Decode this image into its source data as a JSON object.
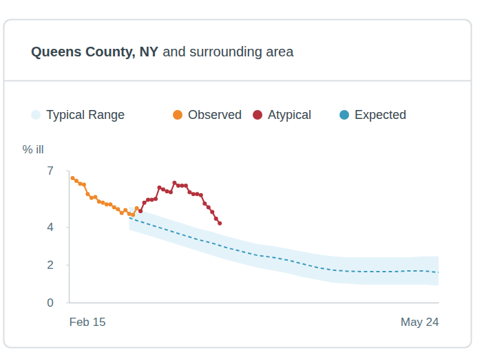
{
  "chart_data": {
    "type": "line",
    "title": "Queens County, NY",
    "subtitle": "and surrounding area",
    "ylabel": "% ill",
    "xlim": [
      0,
      98
    ],
    "xticks": [
      {
        "value": 0,
        "label": "Feb 15"
      },
      {
        "value": 98,
        "label": "May 24"
      }
    ],
    "ylim": [
      0,
      7
    ],
    "yticks": [
      0,
      2,
      4,
      7
    ],
    "series": [
      {
        "name": "Typical Range",
        "type": "area",
        "color": "#e4f3fa",
        "x": [
          16,
          18,
          22,
          26,
          30,
          34,
          38,
          42,
          46,
          50,
          54,
          58,
          62,
          66,
          70,
          74,
          78,
          82,
          86,
          90,
          94,
          98
        ],
        "low": [
          3.85,
          3.75,
          3.5,
          3.25,
          3.0,
          2.75,
          2.5,
          2.25,
          2.05,
          1.85,
          1.7,
          1.55,
          1.35,
          1.2,
          1.05,
          1.0,
          0.95,
          0.95,
          0.95,
          0.95,
          0.95,
          0.9
        ],
        "high": [
          5.1,
          4.95,
          4.7,
          4.45,
          4.2,
          3.95,
          3.75,
          3.5,
          3.3,
          3.1,
          3.0,
          2.85,
          2.7,
          2.55,
          2.45,
          2.4,
          2.4,
          2.4,
          2.4,
          2.4,
          2.45,
          2.45
        ]
      },
      {
        "name": "Observed",
        "type": "line",
        "color": "#f0892a",
        "marker": "circle",
        "line_style": "solid",
        "x": [
          1,
          2,
          3,
          4,
          5,
          6,
          7,
          8,
          9,
          10,
          11,
          12,
          13,
          14,
          15,
          16,
          17,
          18,
          19
        ],
        "values": [
          6.6,
          6.45,
          6.3,
          6.25,
          5.75,
          5.55,
          5.6,
          5.35,
          5.3,
          5.2,
          5.2,
          5.05,
          4.95,
          4.75,
          4.9,
          4.7,
          4.65,
          5.0,
          4.85
        ]
      },
      {
        "name": "Atypical",
        "type": "line",
        "color": "#b3323d",
        "marker": "circle",
        "line_style": "solid",
        "x": [
          19,
          20,
          21,
          22,
          23,
          24,
          25,
          26,
          27,
          28,
          29,
          30,
          31,
          32,
          33,
          34,
          35,
          36,
          37,
          38,
          39,
          40
        ],
        "values": [
          4.85,
          5.3,
          5.45,
          5.45,
          5.5,
          6.1,
          6.0,
          5.9,
          5.85,
          6.35,
          6.2,
          6.2,
          6.2,
          5.85,
          5.75,
          5.75,
          5.7,
          5.25,
          5.05,
          4.8,
          4.45,
          4.2
        ]
      },
      {
        "name": "Expected",
        "type": "line",
        "color": "#3a9abb",
        "marker": "none",
        "line_style": "dashed",
        "x": [
          16,
          18,
          22,
          26,
          30,
          34,
          38,
          42,
          46,
          50,
          54,
          58,
          62,
          66,
          70,
          74,
          78,
          82,
          86,
          90,
          94,
          98
        ],
        "values": [
          4.5,
          4.35,
          4.1,
          3.85,
          3.6,
          3.35,
          3.15,
          2.9,
          2.7,
          2.5,
          2.4,
          2.25,
          2.05,
          1.85,
          1.72,
          1.66,
          1.64,
          1.64,
          1.64,
          1.68,
          1.68,
          1.6
        ]
      }
    ]
  }
}
